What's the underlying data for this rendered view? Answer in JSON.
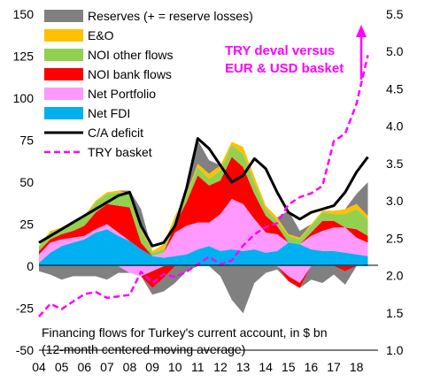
{
  "chart_data": {
    "type": "area",
    "x_tick_labels": [
      "04",
      "05",
      "06",
      "07",
      "08",
      "09",
      "10",
      "11",
      "12",
      "13",
      "14",
      "15",
      "16",
      "17",
      "18"
    ],
    "left_axis": {
      "ylim": [
        -50,
        150
      ],
      "ticks": [
        -50,
        -25,
        0,
        25,
        50,
        75,
        100,
        125,
        150
      ]
    },
    "right_axis": {
      "ylim": [
        1.0,
        5.5
      ],
      "tick_labels": [
        "1.0",
        "1.5",
        "2.0",
        "2.5",
        "3.0",
        "3.5",
        "4.0",
        "4.5",
        "5.0",
        "5.5"
      ]
    },
    "legend": [
      {
        "key": "reserves",
        "label": "Reserves (+ = reserve losses)",
        "color": "#808080",
        "kind": "patch"
      },
      {
        "key": "eo",
        "label": "E&O",
        "color": "#ffc000",
        "kind": "patch"
      },
      {
        "key": "noi_other",
        "label": "NOI other flows",
        "color": "#92d050",
        "kind": "patch"
      },
      {
        "key": "noi_bank",
        "label": "NOI bank flows",
        "color": "#ff0000",
        "kind": "patch"
      },
      {
        "key": "portfolio",
        "label": "Net Portfolio",
        "color": "#ff99ff",
        "kind": "patch"
      },
      {
        "key": "fdi",
        "label": "Net FDI",
        "color": "#00b0f0",
        "kind": "patch"
      },
      {
        "key": "ca",
        "label": "C/A deficit",
        "color": "#000000",
        "kind": "line"
      },
      {
        "key": "try",
        "label": "TRY basket",
        "color": "#ff00ff",
        "kind": "dash"
      }
    ],
    "annotation": {
      "line1": "TRY deval versus",
      "line2": "EUR & USD basket",
      "color": "#ff00ff"
    },
    "note": {
      "line1": "Financing flows for Turkey's current account, in $ bn",
      "line2": "(12-month centered moving average)"
    },
    "x_years": [
      2004,
      2004.5,
      2005,
      2005.5,
      2006,
      2006.5,
      2007,
      2007.5,
      2008,
      2008.5,
      2009,
      2009.5,
      2010,
      2010.5,
      2011,
      2011.5,
      2012,
      2012.5,
      2013,
      2013.5,
      2014,
      2014.5,
      2015,
      2015.5,
      2016,
      2016.5,
      2017,
      2017.5,
      2018,
      2018.5
    ],
    "series": [
      {
        "key": "fdi",
        "values": [
          2,
          8,
          12,
          14,
          16,
          20,
          22,
          18,
          15,
          10,
          6,
          5,
          6,
          7,
          10,
          12,
          9,
          10,
          9,
          10,
          8,
          9,
          14,
          13,
          10,
          9,
          9,
          8,
          7,
          6
        ]
      },
      {
        "key": "portfolio",
        "values": [
          5,
          6,
          4,
          3,
          2,
          2,
          3,
          2,
          -4,
          -6,
          -3,
          3,
          14,
          17,
          16,
          14,
          22,
          30,
          28,
          18,
          12,
          10,
          -6,
          -10,
          8,
          12,
          14,
          15,
          10,
          8
        ]
      },
      {
        "key": "noi_bank",
        "values": [
          2,
          2,
          3,
          4,
          6,
          10,
          12,
          16,
          20,
          4,
          -10,
          -7,
          5,
          14,
          28,
          22,
          20,
          25,
          22,
          15,
          10,
          5,
          -3,
          -3,
          2,
          6,
          4,
          -3,
          5,
          4
        ]
      },
      {
        "key": "noi_other",
        "values": [
          3,
          4,
          3,
          5,
          5,
          6,
          6,
          8,
          8,
          8,
          2,
          2,
          3,
          4,
          5,
          4,
          6,
          7,
          8,
          7,
          4,
          3,
          4,
          3,
          4,
          5,
          4,
          8,
          12,
          10
        ]
      },
      {
        "key": "eo",
        "values": [
          0,
          1,
          1,
          1,
          1,
          1,
          1,
          1,
          0,
          2,
          1,
          3,
          2,
          1,
          2,
          3,
          3,
          2,
          4,
          3,
          2,
          2,
          1,
          1,
          1,
          1,
          2,
          3,
          3,
          2
        ]
      },
      {
        "key": "reserves",
        "values": [
          -3,
          -5,
          -8,
          -6,
          -6,
          -6,
          -8,
          -4,
          2,
          10,
          -4,
          -8,
          -10,
          -3,
          14,
          8,
          -6,
          -20,
          -28,
          -10,
          -4,
          -2,
          14,
          4,
          -8,
          -10,
          -5,
          -8,
          6,
          20
        ]
      }
    ],
    "ca_deficit": [
      14,
      18,
      22,
      26,
      30,
      34,
      38,
      42,
      44,
      24,
      12,
      14,
      24,
      46,
      76,
      70,
      60,
      50,
      54,
      64,
      58,
      44,
      32,
      28,
      32,
      34,
      36,
      44,
      56,
      65
    ],
    "try_basket": [
      1.45,
      1.62,
      1.55,
      1.65,
      1.75,
      1.78,
      1.7,
      1.72,
      1.74,
      2.05,
      1.9,
      2.02,
      1.98,
      2.05,
      2.15,
      2.25,
      2.15,
      2.2,
      2.4,
      2.55,
      2.65,
      2.7,
      2.95,
      3.05,
      3.1,
      3.2,
      3.8,
      3.9,
      4.3,
      4.95
    ]
  }
}
